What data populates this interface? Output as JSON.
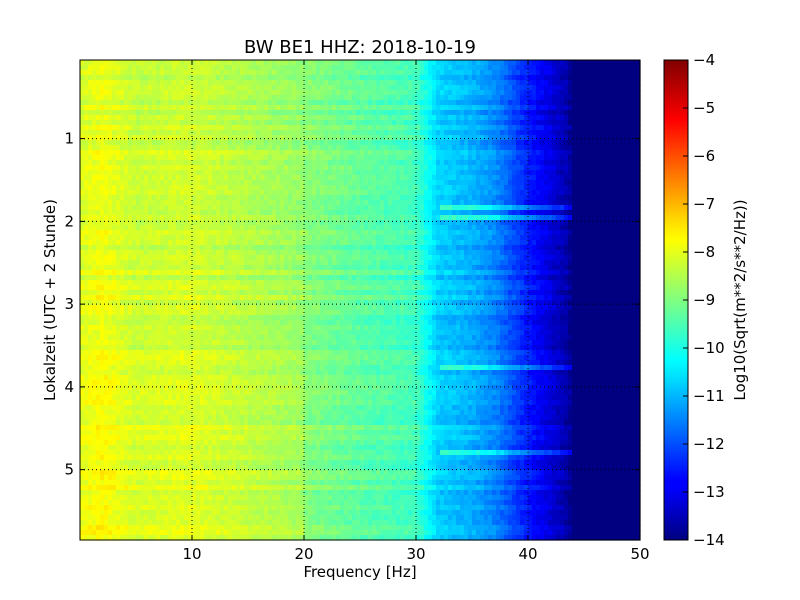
{
  "chart_data": {
    "type": "heatmap",
    "title": "BW BE1 HHZ: 2018-10-19",
    "xlabel": "Frequency [Hz]",
    "ylabel": "Lokalzeit (UTC + 2 Stunde)",
    "xlim": [
      0,
      50
    ],
    "ylim": [
      5.85,
      0.05
    ],
    "y_inverted": true,
    "x_ticks": [
      10,
      20,
      30,
      40,
      50
    ],
    "y_ticks": [
      1,
      2,
      3,
      4,
      5
    ],
    "grid": true,
    "colormap": "jet",
    "colorbar": {
      "label": "Log10(Sqrt(m**2/s**2/Hz))",
      "min": -14,
      "max": -4,
      "ticks": [
        -14,
        -13,
        -12,
        -11,
        -10,
        -9,
        -8,
        -7,
        -6,
        -5,
        -4
      ]
    },
    "value_profile": {
      "x_hz": [
        0,
        2,
        5,
        10,
        15,
        20,
        25,
        30,
        32,
        35,
        37,
        40,
        42,
        43.5,
        44,
        50
      ],
      "z": [
        -8.2,
        -8.0,
        -8.4,
        -8.3,
        -8.6,
        -8.9,
        -9.3,
        -9.6,
        -10.7,
        -11.0,
        -11.4,
        -12.5,
        -13.1,
        -13.6,
        -14.0,
        -14.0
      ]
    },
    "notes": "Background band-limited noise; noise floor above ~44 Hz at -14"
  }
}
